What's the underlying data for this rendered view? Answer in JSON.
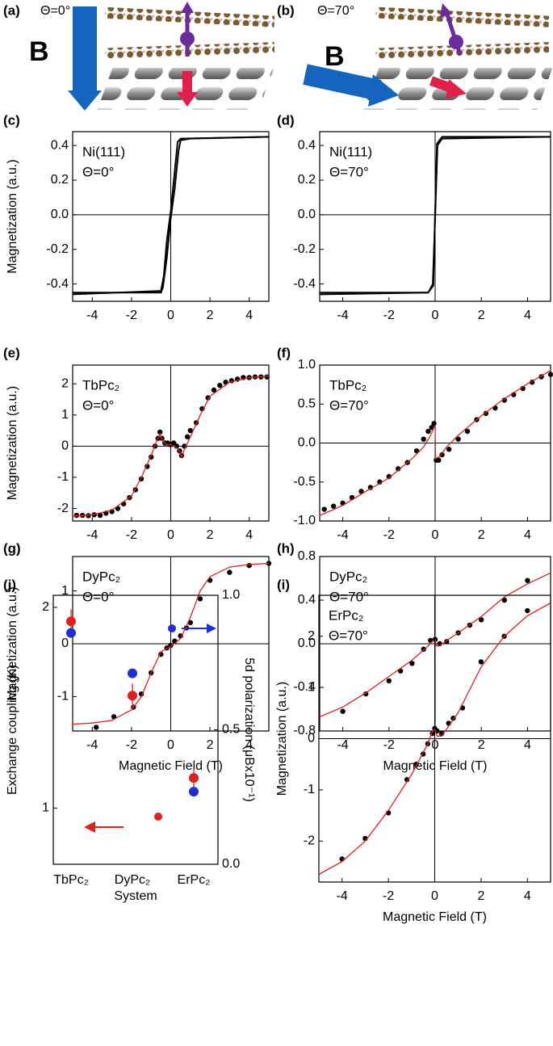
{
  "illustrations": [
    {
      "label": "(a)",
      "angle": "Θ=0°",
      "field": "B"
    },
    {
      "label": "(b)",
      "angle": "Θ=70°",
      "field": "B"
    }
  ],
  "chart_data": [
    {
      "type": "line",
      "panel": "(c)",
      "annotations": [
        "Ni(111)",
        "Θ=0°"
      ],
      "ylabel": "Magnetization (a.u.)",
      "zero_lines": true,
      "xlim": [
        -5,
        5
      ],
      "ylim": [
        -0.5,
        0.48
      ],
      "xticks": [
        -4,
        -2,
        0,
        2,
        4
      ],
      "yticks": [
        -0.4,
        -0.2,
        {
          "value": 0,
          "label": "0.0"
        },
        0.2,
        0.4
      ],
      "series": [
        {
          "color": "#000000",
          "mode": "line",
          "x": [
            -5,
            -0.5,
            -0.4,
            -0.2,
            0,
            0.2,
            0.4,
            0.5,
            1,
            5
          ],
          "values": [
            -0.45,
            -0.45,
            -0.42,
            -0.25,
            -0.02,
            0.15,
            0.37,
            0.43,
            0.44,
            0.45
          ]
        },
        {
          "color": "#000000",
          "mode": "line",
          "x": [
            5,
            0.5,
            0.35,
            0.2,
            0,
            -0.2,
            -0.35,
            -0.5,
            -5
          ],
          "values": [
            0.45,
            0.44,
            0.42,
            0.25,
            0.02,
            -0.15,
            -0.35,
            -0.44,
            -0.46
          ]
        }
      ]
    },
    {
      "type": "line",
      "panel": "(d)",
      "annotations": [
        "Ni(111)",
        "Θ=70°"
      ],
      "zero_lines": true,
      "xlim": [
        -5,
        5
      ],
      "ylim": [
        -0.5,
        0.48
      ],
      "xticks": [
        -4,
        -2,
        0,
        2,
        4
      ],
      "yticks": [
        -0.4,
        -0.2,
        {
          "value": 0,
          "label": "0.0"
        },
        0.2,
        0.4
      ],
      "series": [
        {
          "color": "#000000",
          "mode": "line",
          "x": [
            -5,
            -0.3,
            -0.1,
            0,
            0.1,
            0.3,
            5
          ],
          "values": [
            -0.45,
            -0.45,
            -0.4,
            -0.02,
            0.4,
            0.44,
            0.45
          ]
        },
        {
          "color": "#000000",
          "mode": "line",
          "x": [
            5,
            0.3,
            0.08,
            0,
            -0.08,
            -0.3,
            -5
          ],
          "values": [
            0.45,
            0.45,
            0.41,
            0.02,
            -0.41,
            -0.45,
            -0.46
          ]
        }
      ]
    },
    {
      "type": "scatter",
      "panel": "(e)",
      "annotations": [
        "TbPc₂",
        "Θ=0°"
      ],
      "ylabel": "Magnetization (a.u.)",
      "zero_lines": true,
      "xlim": [
        -5,
        5
      ],
      "ylim": [
        -2.4,
        2.6
      ],
      "xticks": [
        -4,
        -2,
        0,
        2,
        4
      ],
      "yticks": [
        -2,
        -1,
        0,
        1,
        2
      ],
      "series": [
        {
          "color": "#000000",
          "mode": "markers",
          "x": [
            -4.8,
            -4.5,
            -4.2,
            -3.9,
            -3.6,
            -3.3,
            -3,
            -2.7,
            -2.4,
            -2.1,
            -1.8,
            -1.5,
            -1.2,
            -1,
            -0.8,
            -0.65,
            -0.55,
            -0.45,
            -0.3,
            -0.15,
            0,
            0.15,
            0.3,
            0.45,
            0.55,
            0.7,
            0.85,
            1,
            1.3,
            1.6,
            1.9,
            2.2,
            2.5,
            2.8,
            3.1,
            3.4,
            3.7,
            4,
            4.3,
            4.6,
            4.9
          ],
          "values": [
            -2.22,
            -2.22,
            -2.23,
            -2.2,
            -2.22,
            -2.15,
            -2.1,
            -2,
            -1.85,
            -1.65,
            -1.4,
            -1.05,
            -0.65,
            -0.35,
            0,
            0.25,
            0.45,
            0.25,
            0.1,
            0.1,
            0.05,
            0.1,
            0,
            -0.15,
            -0.3,
            0,
            0.3,
            0.5,
            0.75,
            1.2,
            1.55,
            1.8,
            1.95,
            2.05,
            2.1,
            2.15,
            2.2,
            2.2,
            2.22,
            2.22,
            2.22
          ]
        },
        {
          "color": "#e0201c",
          "mode": "line",
          "x": [
            -5,
            -4,
            -3,
            -2,
            -1.5,
            -1,
            -0.7,
            -0.55,
            -0.4,
            -0.2,
            0,
            0.2,
            0.4,
            0.55,
            0.7,
            1,
            1.5,
            2,
            3,
            4,
            5
          ],
          "values": [
            -2.25,
            -2.2,
            -2.05,
            -1.6,
            -1,
            -0.3,
            0.2,
            0.4,
            0.15,
            0.05,
            0.05,
            0,
            -0.1,
            -0.35,
            -0.1,
            0.3,
            1,
            1.6,
            2.05,
            2.2,
            2.25
          ]
        }
      ]
    },
    {
      "type": "scatter",
      "panel": "(f)",
      "annotations": [
        "TbPc₂",
        "Θ=70°"
      ],
      "zero_lines": true,
      "xlim": [
        -5,
        5
      ],
      "ylim": [
        -1,
        1
      ],
      "xticks": [
        -4,
        -2,
        0,
        2,
        4
      ],
      "yticks": [
        {
          "value": -1,
          "label": "-1.0"
        },
        -0.5,
        {
          "value": 0,
          "label": "0.0"
        },
        0.5,
        {
          "value": 1,
          "label": "1.0"
        }
      ],
      "series": [
        {
          "color": "#000000",
          "mode": "markers",
          "x": [
            -4.8,
            -4.4,
            -4,
            -3.6,
            -3.2,
            -2.8,
            -2.4,
            -2,
            -1.6,
            -1.2,
            -0.8,
            -0.5,
            -0.3,
            -0.15,
            -0.05,
            0.05,
            0.15,
            0.3,
            0.6,
            1,
            1.4,
            1.8,
            2.2,
            2.6,
            3,
            3.4,
            3.8,
            4.2,
            4.6,
            5
          ],
          "values": [
            -0.85,
            -0.81,
            -0.77,
            -0.7,
            -0.62,
            -0.57,
            -0.5,
            -0.43,
            -0.33,
            -0.25,
            -0.1,
            0.05,
            0.15,
            0.2,
            0.25,
            -0.22,
            -0.22,
            -0.15,
            -0.08,
            0.05,
            0.15,
            0.3,
            0.38,
            0.45,
            0.55,
            0.62,
            0.7,
            0.78,
            0.85,
            0.88
          ]
        },
        {
          "color": "#e0201c",
          "mode": "line",
          "x": [
            -5,
            -4,
            -3,
            -2,
            -1,
            -0.5,
            -0.2,
            -0.05,
            0,
            0.02,
            0.2,
            0.5,
            1,
            2,
            3,
            4,
            5
          ],
          "values": [
            -0.93,
            -0.8,
            -0.62,
            -0.45,
            -0.2,
            -0.05,
            0.1,
            0.2,
            0.22,
            -0.2,
            -0.17,
            -0.05,
            0.1,
            0.35,
            0.57,
            0.76,
            0.93
          ]
        }
      ]
    },
    {
      "type": "scatter",
      "panel": "(g)",
      "annotations": [
        "DyPc₂",
        "Θ=0°"
      ],
      "ylabel": "Magnetization (a.u.)",
      "xlabel": "Magnetic Field (T)",
      "zero_lines": true,
      "xlim": [
        -5,
        5
      ],
      "ylim": [
        -1.65,
        1.65
      ],
      "xticks": [
        -4,
        -2,
        0,
        2,
        4
      ],
      "yticks": [
        -1,
        0,
        1
      ],
      "series": [
        {
          "color": "#000000",
          "mode": "markers",
          "x": [
            -3.8,
            -2.9,
            -1.9,
            -1.5,
            -1,
            -0.5,
            -0.2,
            0,
            0.2,
            0.5,
            0.8,
            1,
            1.5,
            2,
            3,
            4,
            5
          ],
          "values": [
            -1.58,
            -1.38,
            -1.2,
            -0.95,
            -0.55,
            -0.2,
            -0.08,
            -0.03,
            0.05,
            0.15,
            0.3,
            0.4,
            0.85,
            1.2,
            1.35,
            1.48,
            1.52
          ]
        },
        {
          "color": "#e0201c",
          "mode": "line",
          "x": [
            -5,
            -4,
            -3,
            -2,
            -1.5,
            -1,
            -0.5,
            0,
            0.5,
            1,
            1.5,
            2,
            3,
            4,
            5
          ],
          "values": [
            -1.52,
            -1.5,
            -1.45,
            -1.25,
            -1,
            -0.55,
            -0.15,
            -0.05,
            0.1,
            0.5,
            1,
            1.27,
            1.45,
            1.5,
            1.52
          ]
        }
      ]
    },
    {
      "type": "scatter",
      "panel": "(h)",
      "annotations": [
        "DyPc₂",
        "Θ=70°"
      ],
      "xlabel": "Magnetic Field (T)",
      "zero_lines": true,
      "xlim": [
        -5,
        5
      ],
      "ylim": [
        -0.8,
        0.8
      ],
      "xticks": [
        -4,
        -2,
        0,
        2,
        4
      ],
      "yticks": [
        -0.8,
        -0.4,
        {
          "value": 0,
          "label": "0.0"
        },
        0.4,
        0.8
      ],
      "series": [
        {
          "color": "#000000",
          "mode": "markers",
          "x": [
            -4,
            -3,
            -2,
            -1.5,
            -1,
            -0.5,
            -0.2,
            0,
            0.2,
            0.5,
            1,
            1.5,
            2,
            3,
            4
          ],
          "values": [
            -0.62,
            -0.46,
            -0.34,
            -0.25,
            -0.18,
            -0.05,
            0.03,
            0.04,
            0,
            0.02,
            0.1,
            0.17,
            0.22,
            0.4,
            0.58
          ]
        },
        {
          "color": "#e0201c",
          "mode": "line",
          "x": [
            -5,
            -4,
            -3,
            -2,
            -1,
            -0.3,
            -0.1,
            0,
            0.05,
            0.2,
            0.5,
            1,
            2,
            3,
            4,
            5
          ],
          "values": [
            -0.67,
            -0.58,
            -0.45,
            -0.3,
            -0.15,
            -0.02,
            0.03,
            0.04,
            -0.02,
            -0.02,
            0.03,
            0.1,
            0.25,
            0.43,
            0.55,
            0.65
          ]
        }
      ]
    },
    {
      "type": "scatter",
      "panel": "(j)",
      "ylabel": "Exchange coupling (K)",
      "y2label": "5d polarization (μBx10⁻¹)",
      "xlabel": "System",
      "categories": [
        "TbPc₂",
        "DyPc₂",
        "ErPc₂"
      ],
      "ylim": [
        0.72,
        2.06
      ],
      "yticks": [
        1,
        2
      ],
      "y2lim": [
        0,
        1
      ],
      "y2ticks": [
        {
          "value": 0,
          "label": "0.0"
        },
        0.5,
        {
          "value": 1,
          "label": "1.0"
        }
      ],
      "series": [
        {
          "color": "#e0201c",
          "mode": "markers",
          "values": [
            1.93,
            1.56,
            1.15
          ],
          "errors": [
            0.06,
            0.06,
            0.05
          ]
        },
        {
          "color": "#1f2fd6",
          "mode": "markers",
          "axis": "y2",
          "values": [
            0.86,
            0.71,
            0.27
          ]
        }
      ]
    },
    {
      "type": "scatter",
      "panel": "(i)",
      "annotations": [
        "ErPc₂",
        "Θ=70°"
      ],
      "ylabel": "Magnetization (a.u.)",
      "xlabel": "Magnetic Field (T)",
      "zero_lines": true,
      "xlim": [
        -5,
        5
      ],
      "ylim": [
        -2.8,
        2.8
      ],
      "xticks": [
        -4,
        -2,
        0,
        2,
        4
      ],
      "yticks": [
        -2,
        -1,
        0,
        1,
        2
      ],
      "series": [
        {
          "color": "#000000",
          "mode": "markers",
          "x": [
            -4,
            -3,
            -2,
            -1.2,
            -0.8,
            -0.5,
            -0.3,
            -0.1,
            0,
            0.1,
            0.3,
            0.6,
            0.8,
            1.2,
            2,
            3,
            4
          ],
          "values": [
            -2.35,
            -1.95,
            -1.45,
            -0.8,
            -0.5,
            -0.3,
            -0.1,
            0.1,
            0.2,
            0.15,
            0.1,
            0.3,
            0.4,
            0.6,
            1.5,
            2,
            2.5
          ]
        },
        {
          "color": "#e0201c",
          "mode": "line",
          "x": [
            -5,
            -4,
            -3,
            -2,
            -1,
            -0.3,
            -0.1,
            0,
            0.1,
            0.3,
            1,
            2,
            3,
            4,
            5
          ],
          "values": [
            -2.65,
            -2.4,
            -2,
            -1.4,
            -0.7,
            -0.1,
            0.15,
            0.18,
            0.05,
            0.05,
            0.5,
            1.4,
            2,
            2.4,
            2.65
          ]
        }
      ]
    }
  ]
}
